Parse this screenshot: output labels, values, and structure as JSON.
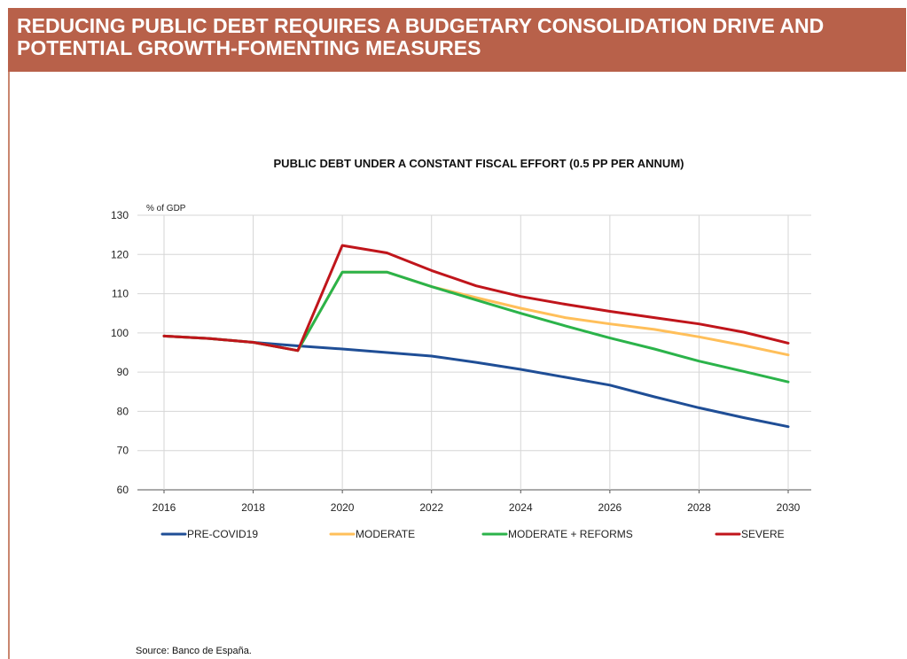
{
  "header": {
    "title": "REDUCING PUBLIC DEBT REQUIRES A BUDGETARY CONSOLIDATION DRIVE AND POTENTIAL GROWTH-FOMENTING MEASURES"
  },
  "source": "Source: Banco de España.",
  "colors": {
    "header_bg": "#b8614a",
    "pre_covid": "#1f4e96",
    "moderate": "#ffbf5a",
    "moderate_reforms": "#2bb34a",
    "severe": "#c0151b"
  },
  "chart_data": {
    "type": "line",
    "title": "PUBLIC DEBT UNDER A CONSTANT FISCAL EFFORT (0.5 PP PER ANNUM)",
    "unit_label": "% of GDP",
    "x": [
      2016,
      2017,
      2018,
      2019,
      2020,
      2021,
      2022,
      2023,
      2024,
      2025,
      2026,
      2027,
      2028,
      2029,
      2030
    ],
    "xticks": [
      2016,
      2018,
      2020,
      2022,
      2024,
      2026,
      2028,
      2030
    ],
    "yticks": [
      60,
      70,
      80,
      90,
      100,
      110,
      120,
      130
    ],
    "xlim": [
      2016,
      2030
    ],
    "ylim": [
      60,
      130
    ],
    "grid": true,
    "legend": "bottom",
    "series": [
      {
        "name": "PRE-COVID19",
        "color": "#1f4e96",
        "values": [
          99.2,
          98.6,
          97.6,
          96.7,
          95.9,
          95.0,
          94.1,
          92.5,
          90.7,
          88.7,
          86.7,
          83.7,
          80.9,
          78.4,
          76.1
        ]
      },
      {
        "name": "MODERATE",
        "color": "#ffbf5a",
        "values": [
          99.2,
          98.6,
          97.6,
          95.5,
          115.5,
          115.5,
          111.8,
          109.0,
          106.3,
          103.9,
          102.3,
          100.9,
          99.0,
          96.8,
          94.4
        ]
      },
      {
        "name": "MODERATE + REFORMS",
        "color": "#2bb34a",
        "values": [
          99.2,
          98.6,
          97.6,
          95.5,
          115.5,
          115.5,
          111.8,
          108.4,
          105.0,
          101.8,
          98.7,
          95.9,
          92.8,
          90.2,
          87.5
        ]
      },
      {
        "name": "SEVERE",
        "color": "#c0151b",
        "values": [
          99.2,
          98.6,
          97.6,
          95.5,
          122.3,
          120.4,
          115.9,
          112.0,
          109.3,
          107.3,
          105.5,
          103.9,
          102.3,
          100.2,
          97.4
        ]
      }
    ]
  }
}
